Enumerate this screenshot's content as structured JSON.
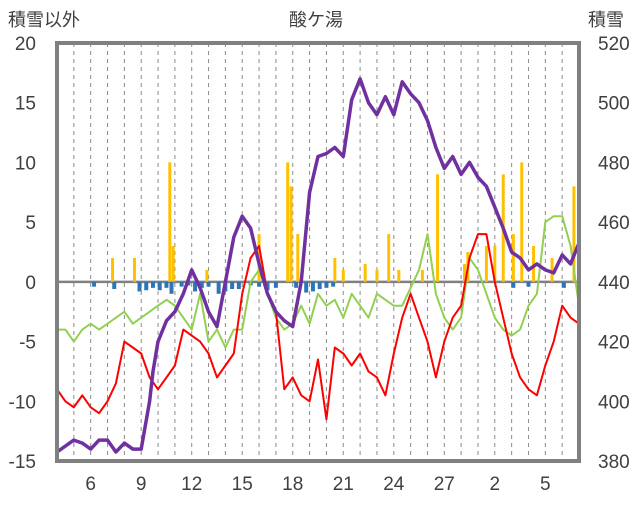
{
  "chart_data": {
    "type": "line",
    "title": "酸ケ湯",
    "y_left_label": "積雪以外",
    "y_right_label": "積雪",
    "y_left_range": [
      -15,
      20
    ],
    "y_right_range": [
      380,
      520
    ],
    "y_left_ticks": [
      "-15",
      "-10",
      "-5",
      "0",
      "5",
      "10",
      "15",
      "20"
    ],
    "y_right_ticks": [
      "380",
      "400",
      "420",
      "440",
      "460",
      "480",
      "500",
      "520"
    ],
    "x_ticks": [
      "6",
      "9",
      "12",
      "15",
      "18",
      "21",
      "24",
      "27",
      "2",
      "5"
    ],
    "x_tick_days": [
      2,
      5,
      8,
      11,
      14,
      17,
      20,
      23,
      26,
      29
    ],
    "x_range_days": [
      0,
      31
    ],
    "grid": "vertical dashed daily, horizontal zero line",
    "colors": {
      "snow_depth": "#7030a0",
      "temperature": "#ff0000",
      "wind": "#92d050",
      "precipitation": "#ffc000",
      "snow_change": "#2e75b6",
      "frame": "#808080"
    },
    "series_snow_depth": [
      [
        0,
        383
      ],
      [
        0.5,
        385
      ],
      [
        1,
        387
      ],
      [
        1.5,
        386
      ],
      [
        2,
        384
      ],
      [
        2.5,
        387
      ],
      [
        3,
        387
      ],
      [
        3.5,
        383
      ],
      [
        4,
        386
      ],
      [
        4.5,
        384
      ],
      [
        5,
        384
      ],
      [
        5.5,
        400
      ],
      [
        5.7,
        410
      ],
      [
        6,
        420
      ],
      [
        6.5,
        427
      ],
      [
        7,
        430
      ],
      [
        7.5,
        436
      ],
      [
        8,
        444
      ],
      [
        8.5,
        438
      ],
      [
        9,
        430
      ],
      [
        9.5,
        425
      ],
      [
        10,
        440
      ],
      [
        10.5,
        455
      ],
      [
        11,
        462
      ],
      [
        11.5,
        458
      ],
      [
        12,
        446
      ],
      [
        12.5,
        436
      ],
      [
        13,
        430
      ],
      [
        13.5,
        427
      ],
      [
        14,
        425
      ],
      [
        14.5,
        440
      ],
      [
        15,
        470
      ],
      [
        15.5,
        482
      ],
      [
        16,
        483
      ],
      [
        16.5,
        485
      ],
      [
        17,
        482
      ],
      [
        17.5,
        501
      ],
      [
        18,
        508
      ],
      [
        18.5,
        500
      ],
      [
        19,
        496
      ],
      [
        19.5,
        502
      ],
      [
        20,
        496
      ],
      [
        20.5,
        507
      ],
      [
        21,
        503
      ],
      [
        21.5,
        500
      ],
      [
        22,
        494
      ],
      [
        22.5,
        485
      ],
      [
        23,
        478
      ],
      [
        23.5,
        482
      ],
      [
        24,
        476
      ],
      [
        24.5,
        480
      ],
      [
        25,
        475
      ],
      [
        25.5,
        472
      ],
      [
        26,
        465
      ],
      [
        26.5,
        458
      ],
      [
        27,
        450
      ],
      [
        27.5,
        448
      ],
      [
        28,
        444
      ],
      [
        28.5,
        446
      ],
      [
        29,
        444
      ],
      [
        29.5,
        443
      ],
      [
        30,
        449
      ],
      [
        30.5,
        446
      ],
      [
        31,
        453
      ]
    ],
    "series_temperature": [
      [
        0,
        -9
      ],
      [
        0.5,
        -10
      ],
      [
        1,
        -10.5
      ],
      [
        1.5,
        -9.5
      ],
      [
        2,
        -10.5
      ],
      [
        2.5,
        -11
      ],
      [
        3,
        -10
      ],
      [
        3.5,
        -8.5
      ],
      [
        4,
        -5
      ],
      [
        4.5,
        -5.5
      ],
      [
        5,
        -6
      ],
      [
        5.5,
        -8
      ],
      [
        6,
        -9
      ],
      [
        6.5,
        -8
      ],
      [
        7,
        -7
      ],
      [
        7.5,
        -4
      ],
      [
        8,
        -4.5
      ],
      [
        8.5,
        -5
      ],
      [
        9,
        -6
      ],
      [
        9.5,
        -8
      ],
      [
        10,
        -7
      ],
      [
        10.5,
        -6
      ],
      [
        11,
        -1
      ],
      [
        11.5,
        2
      ],
      [
        12,
        3
      ],
      [
        12.5,
        -1
      ],
      [
        13,
        -2.5
      ],
      [
        13.5,
        -9
      ],
      [
        14,
        -8
      ],
      [
        14.5,
        -9.5
      ],
      [
        15,
        -10
      ],
      [
        15.5,
        -6.5
      ],
      [
        16,
        -11.5
      ],
      [
        16.5,
        -5.5
      ],
      [
        17,
        -6
      ],
      [
        17.5,
        -7
      ],
      [
        18,
        -6
      ],
      [
        18.5,
        -7.5
      ],
      [
        19,
        -8
      ],
      [
        19.5,
        -9.5
      ],
      [
        20,
        -6
      ],
      [
        20.5,
        -3
      ],
      [
        21,
        -1
      ],
      [
        21.5,
        -3
      ],
      [
        22,
        -5
      ],
      [
        22.5,
        -8
      ],
      [
        23,
        -5
      ],
      [
        23.5,
        -3
      ],
      [
        24,
        -2
      ],
      [
        24.5,
        2
      ],
      [
        25,
        4
      ],
      [
        25.5,
        4
      ],
      [
        26,
        0
      ],
      [
        26.5,
        -3
      ],
      [
        27,
        -6
      ],
      [
        27.5,
        -8
      ],
      [
        28,
        -9
      ],
      [
        28.5,
        -9.5
      ],
      [
        29,
        -7
      ],
      [
        29.5,
        -5
      ],
      [
        30,
        -2
      ],
      [
        30.5,
        -3
      ],
      [
        31,
        -3.5
      ]
    ],
    "series_wind": [
      [
        0,
        -4
      ],
      [
        0.5,
        -4
      ],
      [
        1,
        -5
      ],
      [
        1.5,
        -4
      ],
      [
        2,
        -3.5
      ],
      [
        2.5,
        -4
      ],
      [
        3,
        -3.5
      ],
      [
        3.5,
        -3
      ],
      [
        4,
        -2.5
      ],
      [
        4.5,
        -3.5
      ],
      [
        5,
        -3
      ],
      [
        5.5,
        -2.5
      ],
      [
        6,
        -2
      ],
      [
        6.5,
        -1.5
      ],
      [
        7,
        -2
      ],
      [
        7.5,
        -3
      ],
      [
        8,
        -4
      ],
      [
        8.5,
        -1
      ],
      [
        9,
        -5
      ],
      [
        9.5,
        -4
      ],
      [
        10,
        -5.5
      ],
      [
        10.5,
        -4
      ],
      [
        11,
        -4
      ],
      [
        11.5,
        0
      ],
      [
        12,
        1
      ],
      [
        12.5,
        -1
      ],
      [
        13,
        -3
      ],
      [
        13.5,
        -4
      ],
      [
        14,
        -3.5
      ],
      [
        14.5,
        -2
      ],
      [
        15,
        -3.5
      ],
      [
        15.5,
        -1
      ],
      [
        16,
        -2
      ],
      [
        16.5,
        -1.5
      ],
      [
        17,
        -3
      ],
      [
        17.5,
        -1
      ],
      [
        18,
        -2
      ],
      [
        18.5,
        -3
      ],
      [
        19,
        -1
      ],
      [
        19.5,
        -1.5
      ],
      [
        20,
        -2
      ],
      [
        20.5,
        -2
      ],
      [
        21,
        -0.5
      ],
      [
        21.5,
        1
      ],
      [
        22,
        4
      ],
      [
        22.5,
        -1
      ],
      [
        23,
        -3
      ],
      [
        23.5,
        -4
      ],
      [
        24,
        -3
      ],
      [
        24.5,
        2
      ],
      [
        25,
        1
      ],
      [
        25.5,
        -1
      ],
      [
        26,
        -3
      ],
      [
        26.5,
        -4
      ],
      [
        27,
        -4.5
      ],
      [
        27.5,
        -4
      ],
      [
        28,
        -2
      ],
      [
        28.5,
        -1
      ],
      [
        29,
        5
      ],
      [
        29.5,
        5.5
      ],
      [
        30,
        5.5
      ],
      [
        30.5,
        3
      ],
      [
        31,
        -2
      ]
    ],
    "series_precipitation": [
      [
        3.3,
        2
      ],
      [
        4.6,
        2
      ],
      [
        6.7,
        10
      ],
      [
        6.9,
        3
      ],
      [
        8.9,
        1
      ],
      [
        12.0,
        4
      ],
      [
        13.7,
        10
      ],
      [
        13.9,
        8
      ],
      [
        14.3,
        4
      ],
      [
        16.5,
        2
      ],
      [
        17.0,
        1
      ],
      [
        18.3,
        1.5
      ],
      [
        19.0,
        1
      ],
      [
        19.7,
        4
      ],
      [
        20.3,
        1
      ],
      [
        21.7,
        1
      ],
      [
        22.6,
        9
      ],
      [
        24.2,
        1.5
      ],
      [
        24.4,
        2.5
      ],
      [
        25.5,
        3
      ],
      [
        26.0,
        3
      ],
      [
        26.5,
        9
      ],
      [
        27.1,
        4
      ],
      [
        27.6,
        10
      ],
      [
        28.3,
        3
      ],
      [
        29.4,
        2
      ],
      [
        30.7,
        8
      ]
    ],
    "series_snow_change": [
      [
        2.2,
        -0.4
      ],
      [
        3.4,
        -0.6
      ],
      [
        4.9,
        -0.8
      ],
      [
        5.3,
        -0.7
      ],
      [
        5.7,
        -0.5
      ],
      [
        6.1,
        -0.7
      ],
      [
        6.5,
        -0.5
      ],
      [
        6.8,
        -1
      ],
      [
        7.4,
        -0.4
      ],
      [
        7.8,
        -0.3
      ],
      [
        8.2,
        -0.8
      ],
      [
        8.6,
        -0.5
      ],
      [
        9.0,
        -0.4
      ],
      [
        9.6,
        -1
      ],
      [
        10.0,
        -0.8
      ],
      [
        10.4,
        -0.6
      ],
      [
        10.8,
        -0.6
      ],
      [
        11.5,
        -0.3
      ],
      [
        12.0,
        -0.4
      ],
      [
        12.5,
        -0.7
      ],
      [
        13.0,
        -0.5
      ],
      [
        14.2,
        -0.5
      ],
      [
        14.8,
        -0.9
      ],
      [
        15.2,
        -0.8
      ],
      [
        15.6,
        -0.6
      ],
      [
        16.0,
        -0.5
      ],
      [
        16.4,
        -0.4
      ],
      [
        27.1,
        -0.5
      ],
      [
        28.0,
        -0.4
      ],
      [
        30.1,
        -0.5
      ]
    ]
  }
}
